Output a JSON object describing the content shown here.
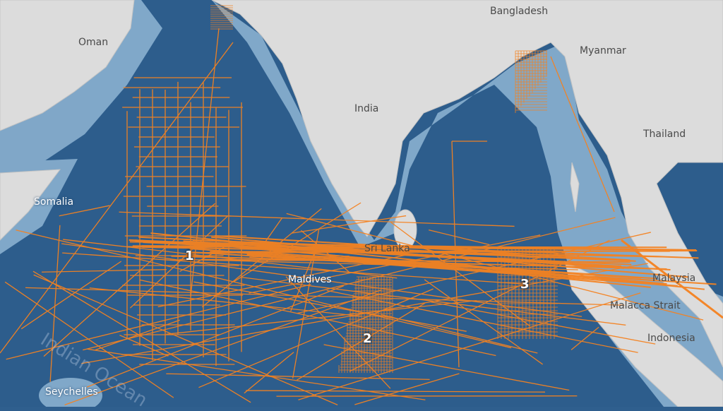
{
  "map": {
    "colors": {
      "ocean_deep": "#2d5d8c",
      "ocean_shelf": "#a9c8de",
      "land": "#dcdcdc",
      "track": "#f58220"
    },
    "place_labels": [
      {
        "text": "Oman",
        "kind": "land"
      },
      {
        "text": "Bangladesh",
        "kind": "land"
      },
      {
        "text": "Myanmar",
        "kind": "land"
      },
      {
        "text": "India",
        "kind": "land"
      },
      {
        "text": "Thailand",
        "kind": "land"
      },
      {
        "text": "Somalia",
        "kind": "sea"
      },
      {
        "text": "Sri Lanka",
        "kind": "land"
      },
      {
        "text": "Maldives",
        "kind": "sea"
      },
      {
        "text": "Malaysia",
        "kind": "land"
      },
      {
        "text": "Malacca Strait",
        "kind": "land"
      },
      {
        "text": "Indonesia",
        "kind": "land"
      },
      {
        "text": "Seychelles",
        "kind": "sea"
      },
      {
        "text": "Indian Ocean",
        "kind": "ocean"
      }
    ],
    "search_zones": [
      "1",
      "2",
      "3"
    ]
  }
}
